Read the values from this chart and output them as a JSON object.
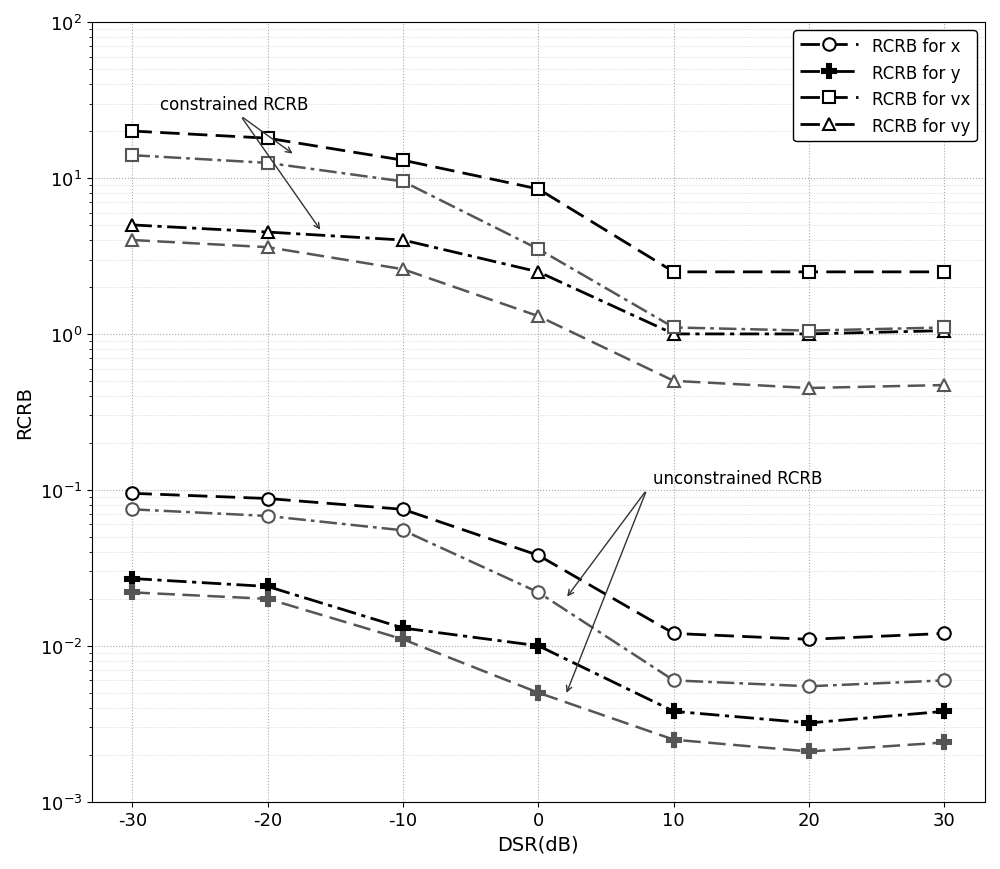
{
  "x": [
    -30,
    -20,
    -10,
    0,
    10,
    20,
    30
  ],
  "xlabel": "DSR(dB)",
  "ylabel": "RCRB",
  "series": {
    "c_x": {
      "label": "RCRB for x",
      "marker": "o",
      "linestyle": "--",
      "color": "#000000",
      "markersize": 9,
      "linewidth": 2.0,
      "markerfacecolor": "white",
      "markeredgecolor": "#000000",
      "values": [
        0.095,
        0.088,
        0.075,
        0.038,
        0.012,
        0.011,
        0.012
      ]
    },
    "c_y": {
      "label": "RCRB for y",
      "marker": "P",
      "linestyle": "-.",
      "color": "#000000",
      "markersize": 10,
      "linewidth": 2.0,
      "markerfacecolor": "#000000",
      "markeredgecolor": "#000000",
      "values": [
        0.027,
        0.024,
        0.013,
        0.01,
        0.0038,
        0.0032,
        0.0038
      ]
    },
    "c_vx": {
      "label": "RCRB for vx",
      "marker": "s",
      "linestyle": "--",
      "color": "#000000",
      "markersize": 9,
      "linewidth": 2.0,
      "markerfacecolor": "white",
      "markeredgecolor": "#000000",
      "values": [
        20.0,
        18.0,
        13.0,
        8.5,
        2.5,
        2.5,
        2.5
      ]
    },
    "c_vy": {
      "label": "RCRB for vy",
      "marker": "^",
      "linestyle": "-.",
      "color": "#000000",
      "markersize": 9,
      "linewidth": 2.0,
      "markerfacecolor": "white",
      "markeredgecolor": "#000000",
      "values": [
        5.0,
        4.5,
        4.0,
        2.5,
        1.0,
        1.0,
        1.05
      ]
    },
    "u_x": {
      "label": null,
      "marker": "o",
      "linestyle": "-.",
      "color": "#555555",
      "markersize": 9,
      "linewidth": 1.8,
      "markerfacecolor": "white",
      "markeredgecolor": "#555555",
      "values": [
        0.075,
        0.068,
        0.055,
        0.022,
        0.006,
        0.0055,
        0.006
      ]
    },
    "u_y": {
      "label": null,
      "marker": "P",
      "linestyle": "--",
      "color": "#555555",
      "markersize": 10,
      "linewidth": 1.8,
      "markerfacecolor": "#555555",
      "markeredgecolor": "#555555",
      "values": [
        0.022,
        0.02,
        0.011,
        0.005,
        0.0025,
        0.0021,
        0.0024
      ]
    },
    "u_vx": {
      "label": null,
      "marker": "s",
      "linestyle": "-.",
      "color": "#555555",
      "markersize": 9,
      "linewidth": 1.8,
      "markerfacecolor": "white",
      "markeredgecolor": "#555555",
      "values": [
        14.0,
        12.5,
        9.5,
        3.5,
        1.1,
        1.05,
        1.1
      ]
    },
    "u_vy": {
      "label": null,
      "marker": "^",
      "linestyle": "--",
      "color": "#555555",
      "markersize": 9,
      "linewidth": 1.8,
      "markerfacecolor": "white",
      "markeredgecolor": "#555555",
      "values": [
        4.0,
        3.6,
        2.6,
        1.3,
        0.5,
        0.45,
        0.47
      ]
    }
  },
  "legend_labels": [
    "RCRB for x",
    "RCRB for y",
    "RCRB for vx",
    "RCRB for vy"
  ],
  "constrained_text": "constrained RCRB",
  "unconstrained_text": "unconstrained RCRB"
}
